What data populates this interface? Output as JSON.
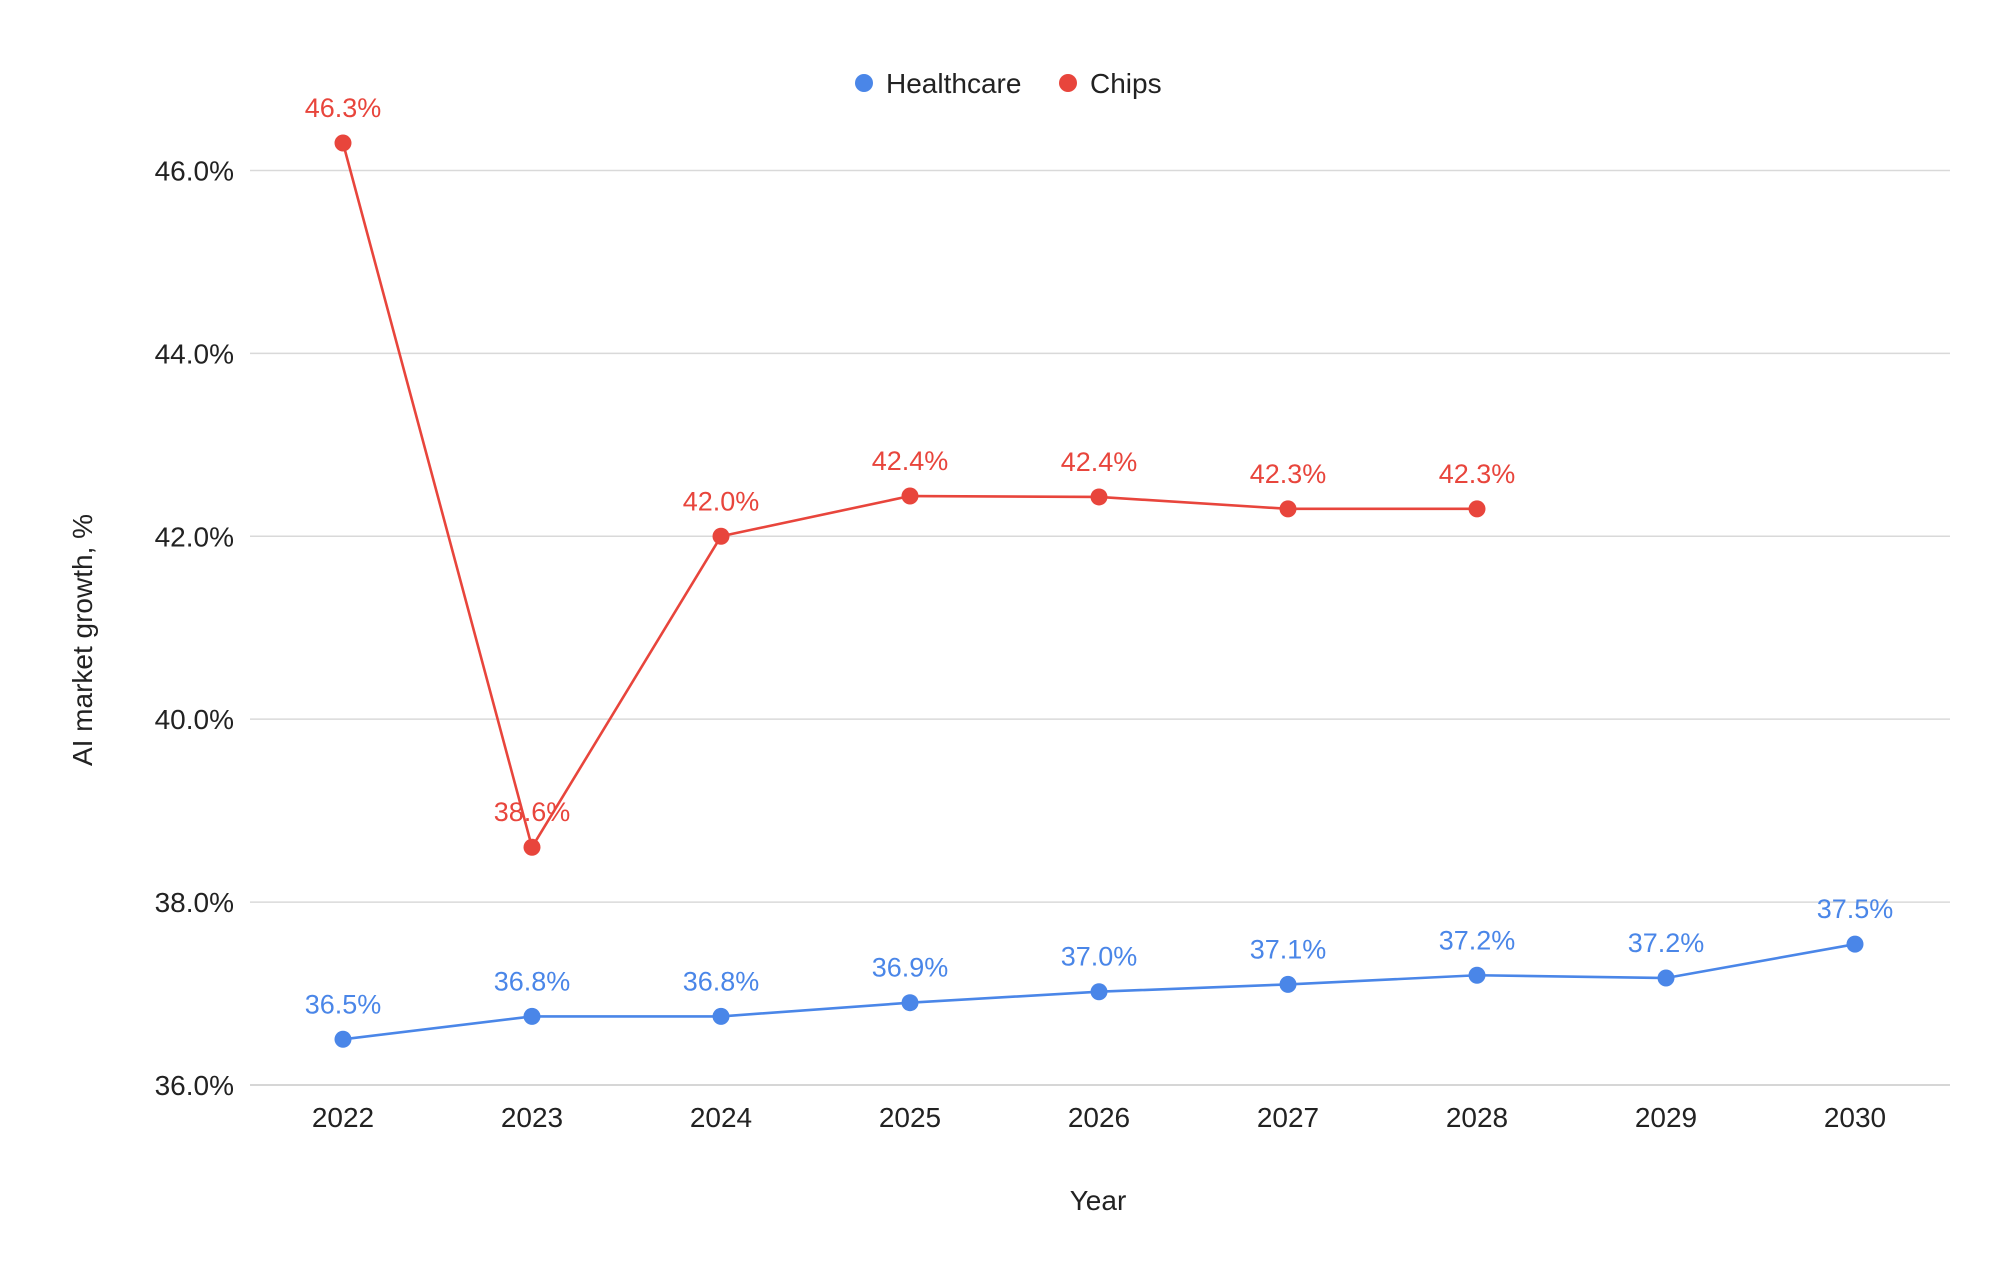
{
  "chart_data": {
    "type": "line",
    "title": "",
    "xlabel": "Year",
    "ylabel": "AI market growth, %",
    "categories": [
      "2022",
      "2023",
      "2024",
      "2025",
      "2026",
      "2027",
      "2028",
      "2029",
      "2030"
    ],
    "ylim": [
      36,
      47
    ],
    "yticks": [
      36,
      38,
      40,
      42,
      44,
      46
    ],
    "ytick_labels": [
      "36.0%",
      "38.0%",
      "40.0%",
      "42.0%",
      "44.0%",
      "46.0%"
    ],
    "grid": true,
    "legend_position": "top-center",
    "series": [
      {
        "name": "Healthcare",
        "color": "#4a86e8",
        "values": [
          36.5,
          36.75,
          36.75,
          36.9,
          37.02,
          37.1,
          37.2,
          37.17,
          37.54
        ],
        "labels": [
          "36.5%",
          "36.8%",
          "36.8%",
          "36.9%",
          "37.0%",
          "37.1%",
          "37.2%",
          "37.2%",
          "37.5%"
        ]
      },
      {
        "name": "Chips",
        "color": "#e8453c",
        "values": [
          46.3,
          38.6,
          42.0,
          42.44,
          42.43,
          42.3,
          42.3,
          null,
          null
        ],
        "labels": [
          "46.3%",
          "38.6%",
          "42.0%",
          "42.4%",
          "42.4%",
          "42.3%",
          "42.3%",
          null,
          null
        ]
      }
    ]
  }
}
